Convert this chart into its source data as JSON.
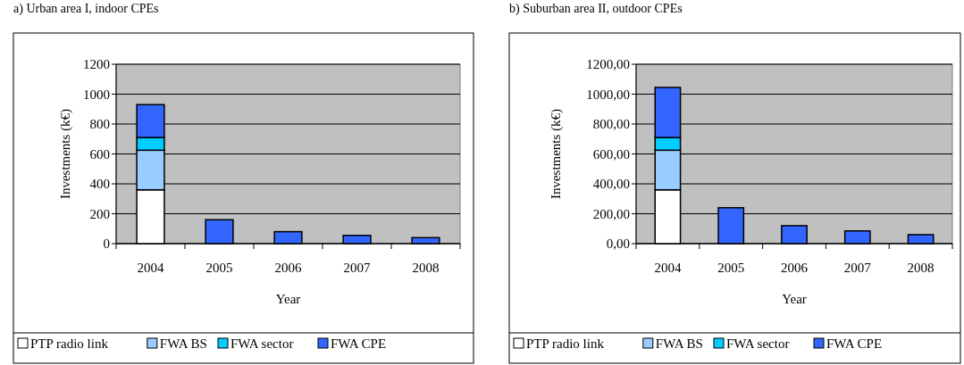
{
  "chart_data": [
    {
      "type": "bar",
      "title": "a) Urban area I, indoor CPEs",
      "xlabel": "Year",
      "ylabel": "Investments (k€)",
      "categories": [
        "2004",
        "2005",
        "2006",
        "2007",
        "2008"
      ],
      "stacked": true,
      "series": [
        {
          "name": "PTP radio link",
          "color": "#ffffff",
          "values": [
            360,
            null,
            null,
            null,
            null
          ]
        },
        {
          "name": "FWA BS",
          "color": "#99ccff",
          "values": [
            265,
            null,
            null,
            null,
            null
          ]
        },
        {
          "name": "FWA sector",
          "color": "#00ccff",
          "values": [
            85,
            null,
            null,
            null,
            null
          ]
        },
        {
          "name": "FWA CPE",
          "color": "#3366ff",
          "values": [
            220,
            160,
            80,
            55,
            40
          ]
        }
      ],
      "ylim": [
        0,
        1200
      ],
      "yticks": [
        0,
        200,
        400,
        600,
        800,
        1000,
        1200
      ],
      "grid": "y",
      "legend": "bottom"
    },
    {
      "type": "bar",
      "title": "b) Suburban area II, outdoor CPEs",
      "xlabel": "Year",
      "ylabel": "Investments (k€)",
      "categories": [
        "2004",
        "2005",
        "2006",
        "2007",
        "2008"
      ],
      "stacked": true,
      "series": [
        {
          "name": "PTP radio link",
          "color": "#ffffff",
          "values": [
            360,
            null,
            null,
            null,
            null
          ]
        },
        {
          "name": "FWA BS",
          "color": "#99ccff",
          "values": [
            265,
            null,
            null,
            null,
            null
          ]
        },
        {
          "name": "FWA sector",
          "color": "#00ccff",
          "values": [
            85,
            null,
            null,
            null,
            null
          ]
        },
        {
          "name": "FWA CPE",
          "color": "#3366ff",
          "values": [
            335,
            240,
            120,
            85,
            60
          ]
        }
      ],
      "ylim": [
        0,
        1200
      ],
      "yticks": [
        {
          "value": 0,
          "label": "0,00"
        },
        {
          "value": 200,
          "label": "200,00"
        },
        {
          "value": 400,
          "label": "400,00"
        },
        {
          "value": 600,
          "label": "600,00"
        },
        {
          "value": 800,
          "label": "800,00"
        },
        {
          "value": 1000,
          "label": "1000,00"
        },
        {
          "value": 1200,
          "label": "1200,00"
        }
      ],
      "grid": "y",
      "legend": "bottom"
    }
  ]
}
